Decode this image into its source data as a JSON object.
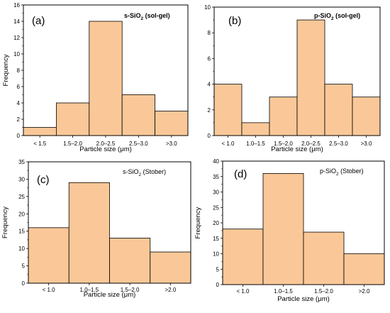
{
  "chart_data": [
    {
      "type": "bar",
      "panel": "(a)",
      "title_main": "s-SiO",
      "title_sub": "2",
      "title_suffix": " (sol-gel)",
      "title_bold": true,
      "categories": [
        "< 1.5",
        "1.5–2.0",
        "2.0–2.5",
        "2.5–3.0",
        ">3.0"
      ],
      "values": [
        1,
        4,
        14,
        5,
        3
      ],
      "xlabel": "Particle size (μm)",
      "ylabel": "Frequency",
      "ylim": [
        0,
        16
      ],
      "yticks": [
        "0",
        "2",
        "4",
        "6",
        "8",
        "10",
        "12",
        "14",
        "16"
      ],
      "bar_color": "#FAC898"
    },
    {
      "type": "bar",
      "panel": "(b)",
      "title_main": "p-SiO",
      "title_sub": "2",
      "title_suffix": " (sol-gel)",
      "title_bold": true,
      "categories": [
        "< 1.0",
        "1.0–1.5",
        "1.5–2.0",
        "2.0–2.5",
        "2.5–3.0",
        ">3.0"
      ],
      "values": [
        4,
        1,
        3,
        9,
        4,
        3
      ],
      "xlabel": "Particle size (μm)",
      "ylabel": "",
      "ylim": [
        0,
        10
      ],
      "yticks": [
        "0",
        "2",
        "4",
        "6",
        "8",
        "10"
      ],
      "bar_color": "#FAC898"
    },
    {
      "type": "bar",
      "panel": "(c)",
      "title_main": "s-SiO",
      "title_sub": "2",
      "title_suffix": " (Stober)",
      "title_bold": false,
      "categories": [
        "< 1.0",
        "1.0–1.5",
        "1.5–2.0",
        ">2.0"
      ],
      "values": [
        16,
        29,
        13,
        9
      ],
      "xlabel": "Particle size (μm)",
      "ylabel": "Frequency",
      "ylim": [
        0,
        35
      ],
      "yticks": [
        "0",
        "5",
        "10",
        "15",
        "20",
        "25",
        "30",
        "35"
      ],
      "bar_color": "#FAC898"
    },
    {
      "type": "bar",
      "panel": "(d)",
      "title_main": "p-SiO",
      "title_sub": "2",
      "title_suffix": " (Stober)",
      "title_bold": false,
      "categories": [
        "< 1.0",
        "1.0–1.5",
        "1.5–2.0",
        ">2.0"
      ],
      "values": [
        18,
        36,
        17,
        10
      ],
      "xlabel": "Particle size (μm)",
      "ylabel": "Frequency",
      "ylim": [
        0,
        40
      ],
      "yticks": [
        "0",
        "5",
        "10",
        "15",
        "20",
        "25",
        "30",
        "35",
        "40"
      ],
      "bar_color": "#FAC898"
    }
  ]
}
